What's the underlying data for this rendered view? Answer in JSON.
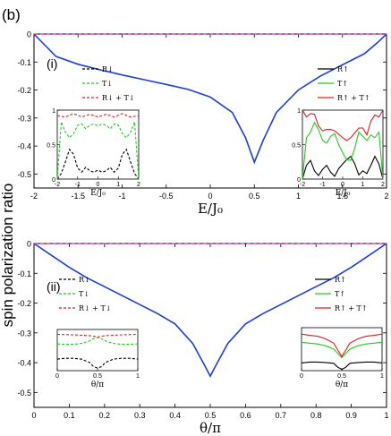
{
  "figure_label": "(b)",
  "shared_ylabel": "spin polarization ratio",
  "colors": {
    "main": "#1f3fd6",
    "magenta": "#e020c8",
    "black": "#000000",
    "green": "#22cc22",
    "red": "#e02020"
  },
  "chart_data": [
    {
      "type": "line",
      "panel_label": "(i)",
      "xlabel": "E/J₀",
      "ylabel": "",
      "xlim": [
        -2,
        2
      ],
      "ylim": [
        -0.55,
        0.0
      ],
      "x_ticks": [
        "-2",
        "-1.5",
        "-1",
        "-0.5",
        "0",
        "0.5",
        "1",
        "1.5",
        "2"
      ],
      "y_ticks": [
        "0",
        "-0.1",
        "-0.2",
        "-0.3",
        "-0.4",
        "-0.5"
      ],
      "grid": false,
      "series": [
        {
          "color": "#1f3fd6",
          "x": [
            -2,
            -1.75,
            -1.5,
            -1.25,
            -1,
            -0.75,
            -0.5,
            -0.25,
            0,
            0.25,
            0.4,
            0.5,
            0.6,
            0.75,
            1,
            1.25,
            1.5,
            1.75,
            1.9,
            2
          ],
          "y": [
            0,
            -0.08,
            -0.108,
            -0.128,
            -0.146,
            -0.163,
            -0.18,
            -0.198,
            -0.225,
            -0.28,
            -0.37,
            -0.458,
            -0.38,
            -0.28,
            -0.2,
            -0.15,
            -0.11,
            -0.07,
            -0.03,
            0
          ]
        },
        {
          "color": "#e020c8",
          "style": "dashed",
          "x": [
            -2,
            2
          ],
          "y": [
            0,
            0
          ]
        }
      ],
      "insets": [
        {
          "legend": [
            "R↓",
            "T↓",
            "R↓ + T↓"
          ],
          "xlabel": "E/J₀",
          "x_ticks": [
            "-2",
            "-1",
            "0",
            "1",
            "2"
          ],
          "y_ticks": [
            "1",
            "0.5",
            "0"
          ],
          "xlim": [
            -2,
            2
          ],
          "ylim": [
            0,
            1
          ],
          "series": [
            {
              "color": "#000000",
              "style": "dashed",
              "x": [
                -2,
                -1.8,
                -1.6,
                -1.4,
                -1.2,
                -1,
                -0.8,
                -0.6,
                -0.4,
                -0.2,
                0,
                0.2,
                0.4,
                0.6,
                0.8,
                1,
                1.2,
                1.4,
                1.6,
                1.8,
                2
              ],
              "y": [
                0,
                0.08,
                0.25,
                0.43,
                0.36,
                0.16,
                0.1,
                0.17,
                0.12,
                0.1,
                0.13,
                0.1,
                0.12,
                0.17,
                0.1,
                0.16,
                0.36,
                0.43,
                0.25,
                0.08,
                0
              ]
            },
            {
              "color": "#22cc22",
              "style": "dashed",
              "x": [
                -2,
                -1.8,
                -1.6,
                -1.4,
                -1.2,
                -1,
                -0.8,
                -0.6,
                -0.4,
                -0.2,
                0,
                0.2,
                0.4,
                0.6,
                0.8,
                1,
                1.2,
                1.4,
                1.6,
                1.8,
                2
              ],
              "y": [
                0,
                0.83,
                0.68,
                0.6,
                0.66,
                0.78,
                0.8,
                0.73,
                0.78,
                0.8,
                0.77,
                0.8,
                0.78,
                0.73,
                0.8,
                0.78,
                0.66,
                0.6,
                0.68,
                0.83,
                0
              ]
            },
            {
              "color": "#e02020",
              "style": "dashed",
              "x": [
                -2,
                -1.6,
                -1.2,
                -0.8,
                -0.4,
                0,
                0.4,
                0.8,
                1.2,
                1.6,
                2
              ],
              "y": [
                0.92,
                0.9,
                0.95,
                0.9,
                0.94,
                0.9,
                0.94,
                0.9,
                0.95,
                0.9,
                0.92
              ]
            }
          ]
        },
        {
          "legend": [
            "R↑",
            "T↑",
            "R↑ + T↑"
          ],
          "xlabel": "E/J₀",
          "x_ticks": [
            "-2",
            "-1",
            "0",
            "1",
            "2"
          ],
          "y_ticks": [
            "1",
            "0.5",
            "0"
          ],
          "xlim": [
            -2,
            2
          ],
          "ylim": [
            0,
            1
          ],
          "series": [
            {
              "color": "#000000",
              "x": [
                -2,
                -1.8,
                -1.6,
                -1.4,
                -1.2,
                -1,
                -0.8,
                -0.6,
                -0.4,
                -0.2,
                0,
                0.2,
                0.4,
                0.6,
                0.8,
                1,
                1.2,
                1.4,
                1.6,
                1.8,
                2
              ],
              "y": [
                0,
                0.2,
                0.27,
                0.12,
                0.05,
                0.14,
                0.2,
                0.1,
                0.04,
                0.15,
                0.22,
                0.28,
                0.33,
                0.22,
                0.06,
                0.12,
                0.08,
                0.2,
                0.33,
                0.22,
                0
              ]
            },
            {
              "color": "#22cc22",
              "x": [
                -2,
                -1.8,
                -1.6,
                -1.4,
                -1.2,
                -1,
                -0.8,
                -0.6,
                -0.4,
                -0.2,
                0,
                0.2,
                0.4,
                0.6,
                0.8,
                1,
                1.2,
                1.4,
                1.6,
                1.8,
                2
              ],
              "y": [
                0,
                0.6,
                0.68,
                0.82,
                0.72,
                0.56,
                0.52,
                0.62,
                0.66,
                0.5,
                0.38,
                0.28,
                0.27,
                0.45,
                0.68,
                0.62,
                0.56,
                0.64,
                0.6,
                0.68,
                0
              ]
            },
            {
              "color": "#e02020",
              "x": [
                -2,
                -1.8,
                -1.6,
                -1.4,
                -1.2,
                -1,
                -0.8,
                -0.6,
                -0.4,
                -0.2,
                0,
                0.2,
                0.4,
                0.6,
                0.8,
                1,
                1.2,
                1.4,
                1.6,
                1.8,
                2
              ],
              "y": [
                1,
                0.9,
                0.95,
                0.94,
                0.77,
                0.7,
                0.72,
                0.72,
                0.7,
                0.65,
                0.6,
                0.56,
                0.6,
                0.67,
                0.74,
                0.74,
                0.64,
                0.84,
                0.93,
                0.9,
                1
              ]
            }
          ]
        }
      ]
    },
    {
      "type": "line",
      "panel_label": "(ii)",
      "xlabel": "θ/π",
      "ylabel": "",
      "xlim": [
        0,
        1
      ],
      "ylim": [
        -0.55,
        0.0
      ],
      "x_ticks": [
        "0",
        "0.1",
        "0.2",
        "0.3",
        "0.4",
        "0.5",
        "0.6",
        "0.7",
        "0.8",
        "0.9",
        "1"
      ],
      "y_ticks": [
        "0",
        "-0.1",
        "-0.2",
        "-0.3",
        "-0.4",
        "-0.5"
      ],
      "grid": false,
      "series": [
        {
          "color": "#1f3fd6",
          "x": [
            0,
            0.05,
            0.1,
            0.15,
            0.2,
            0.25,
            0.3,
            0.35,
            0.4,
            0.45,
            0.48,
            0.5,
            0.52,
            0.55,
            0.6,
            0.65,
            0.7,
            0.75,
            0.8,
            0.85,
            0.9,
            0.95,
            1
          ],
          "y": [
            0,
            -0.04,
            -0.08,
            -0.115,
            -0.145,
            -0.175,
            -0.205,
            -0.235,
            -0.27,
            -0.335,
            -0.4,
            -0.445,
            -0.4,
            -0.335,
            -0.27,
            -0.235,
            -0.205,
            -0.175,
            -0.145,
            -0.115,
            -0.08,
            -0.04,
            0
          ]
        },
        {
          "color": "#e020c8",
          "style": "dashed",
          "x": [
            0,
            1
          ],
          "y": [
            0,
            0
          ]
        }
      ],
      "insets": [
        {
          "legend": [
            "R↓",
            "T↓",
            "R↓ + T↓"
          ],
          "xlabel": "θ/π",
          "x_ticks": [
            "0",
            "0.5",
            "1"
          ],
          "y_ticks": [],
          "xlim": [
            0,
            1
          ],
          "ylim": [
            0,
            1
          ],
          "series": [
            {
              "color": "#000000",
              "style": "dashed",
              "x": [
                0,
                0.1,
                0.2,
                0.3,
                0.4,
                0.45,
                0.5,
                0.55,
                0.6,
                0.7,
                0.8,
                0.9,
                1
              ],
              "y": [
                0.28,
                0.3,
                0.3,
                0.28,
                0.2,
                0.1,
                0.06,
                0.1,
                0.2,
                0.28,
                0.3,
                0.3,
                0.28
              ]
            },
            {
              "color": "#22cc22",
              "style": "dashed",
              "x": [
                0,
                0.1,
                0.2,
                0.3,
                0.4,
                0.45,
                0.5,
                0.55,
                0.6,
                0.7,
                0.8,
                0.9,
                1
              ],
              "y": [
                0.65,
                0.64,
                0.64,
                0.66,
                0.72,
                0.78,
                0.8,
                0.78,
                0.72,
                0.66,
                0.64,
                0.64,
                0.65
              ]
            },
            {
              "color": "#e02020",
              "style": "dashed",
              "x": [
                0,
                0.2,
                0.4,
                0.5,
                0.6,
                0.8,
                1
              ],
              "y": [
                0.88,
                0.87,
                0.85,
                0.82,
                0.85,
                0.87,
                0.88
              ]
            }
          ]
        },
        {
          "legend": [
            "R↑",
            "T↑",
            "R↑ + T↑"
          ],
          "xlabel": "θ/π",
          "x_ticks": [
            "0",
            "0.5",
            "1"
          ],
          "y_ticks": [],
          "xlim": [
            0,
            1
          ],
          "ylim": [
            0,
            1
          ],
          "series": [
            {
              "color": "#000000",
              "x": [
                0,
                0.1,
                0.2,
                0.3,
                0.4,
                0.45,
                0.5,
                0.55,
                0.6,
                0.7,
                0.8,
                0.9,
                1
              ],
              "y": [
                0.18,
                0.2,
                0.2,
                0.19,
                0.17,
                0.08,
                0.03,
                0.08,
                0.17,
                0.19,
                0.2,
                0.2,
                0.18
              ]
            },
            {
              "color": "#22cc22",
              "x": [
                0,
                0.1,
                0.2,
                0.3,
                0.4,
                0.45,
                0.5,
                0.55,
                0.6,
                0.7,
                0.8,
                0.9,
                1
              ],
              "y": [
                0.66,
                0.64,
                0.62,
                0.58,
                0.5,
                0.4,
                0.3,
                0.4,
                0.5,
                0.58,
                0.62,
                0.64,
                0.66
              ]
            },
            {
              "color": "#e02020",
              "x": [
                0,
                0.1,
                0.2,
                0.3,
                0.4,
                0.45,
                0.5,
                0.55,
                0.6,
                0.7,
                0.8,
                0.9,
                1
              ],
              "y": [
                0.85,
                0.82,
                0.8,
                0.74,
                0.64,
                0.48,
                0.33,
                0.48,
                0.64,
                0.74,
                0.8,
                0.82,
                0.85
              ]
            }
          ]
        }
      ]
    }
  ]
}
